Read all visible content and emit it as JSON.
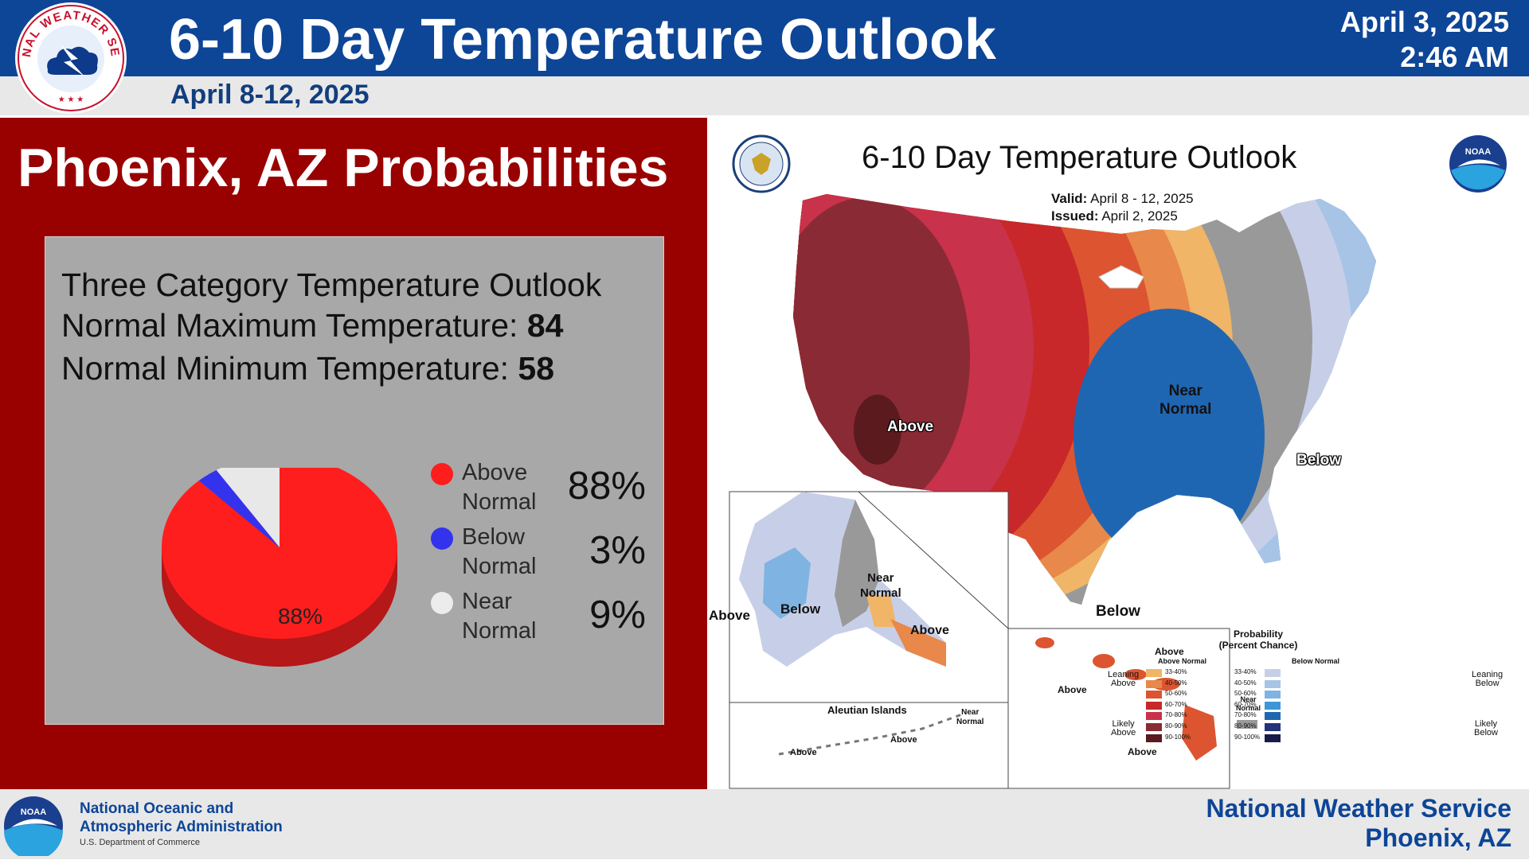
{
  "header": {
    "title": "6-10 Day Temperature Outlook",
    "valid_range": "April 8-12, 2025",
    "issued_date": "April 3, 2025",
    "issued_time": "2:46 AM",
    "logo_text": "NATIONAL WEATHER SERVICE"
  },
  "panel": {
    "title": "Phoenix, AZ Probabilities",
    "outlook_heading": "Three Category Temperature Outlook",
    "normal_max_label": "Normal Maximum Temperature:",
    "normal_max_value": "84",
    "normal_min_label": "Normal Minimum Temperature:",
    "normal_min_value": "58",
    "pie_label": "88%",
    "categories": [
      {
        "line1": "Above",
        "line2": "Normal",
        "value_text": "88%",
        "value": 88,
        "color": "#ff1e1e"
      },
      {
        "line1": "Below",
        "line2": "Normal",
        "value_text": "3%",
        "value": 3,
        "color": "#3333ee"
      },
      {
        "line1": "Near",
        "line2": "Normal",
        "value_text": "9%",
        "value": 9,
        "color": "#e8e8e8"
      }
    ]
  },
  "map": {
    "title": "6-10 Day Temperature Outlook",
    "valid_label": "Valid:",
    "valid_value": "April 8 - 12, 2025",
    "issued_label": "Issued:",
    "issued_value": "April 2, 2025",
    "noaa_logo_text": "NOAA",
    "labels": {
      "above": "Above",
      "near_line1": "Near",
      "near_line2": "Normal",
      "below": "Below",
      "below_texas": "Below"
    },
    "alaska": {
      "above_west": "Above",
      "below": "Below",
      "near_line1": "Near",
      "near_line2": "Normal",
      "above_se": "Above"
    },
    "aleutian": {
      "title": "Aleutian Islands",
      "near_line1": "Near",
      "near_line2": "Normal",
      "above_1": "Above",
      "above_2": "Above"
    },
    "hawaii": {
      "above_1": "Above",
      "above_2": "Above",
      "above_3": "Above"
    },
    "legend": {
      "title_line1": "Probability",
      "title_line2": "(Percent Chance)",
      "above_header": "Above Normal",
      "below_header": "Below Normal",
      "near_line1": "Near",
      "near_line2": "Normal",
      "leaning_above_1": "Leaning",
      "leaning_above_2": "Above",
      "likely_above_1": "Likely",
      "likely_above_2": "Above",
      "leaning_below_1": "Leaning",
      "leaning_below_2": "Below",
      "likely_below_1": "Likely",
      "likely_below_2": "Below",
      "ranges": [
        "33-40%",
        "40-50%",
        "50-60%",
        "60-70%",
        "70-80%",
        "80-90%",
        "90-100%"
      ],
      "above_colors": [
        "#f0b567",
        "#e8884a",
        "#dc5530",
        "#c8282a",
        "#c8324a",
        "#8a2a34",
        "#5a1a1e"
      ],
      "below_colors": [
        "#c7cfe8",
        "#a7c4e6",
        "#7fb3e2",
        "#3e96d8",
        "#1f66b2",
        "#22337a",
        "#1a1a4a"
      ],
      "near_color": "#999999"
    }
  },
  "footer": {
    "noaa_line1": "National Oceanic and",
    "noaa_line2": "Atmospheric Administration",
    "noaa_dept": "U.S. Department of Commerce",
    "noaa_logo_text": "NOAA",
    "nws_line1": "National Weather Service",
    "nws_line2": "Phoenix, AZ"
  }
}
